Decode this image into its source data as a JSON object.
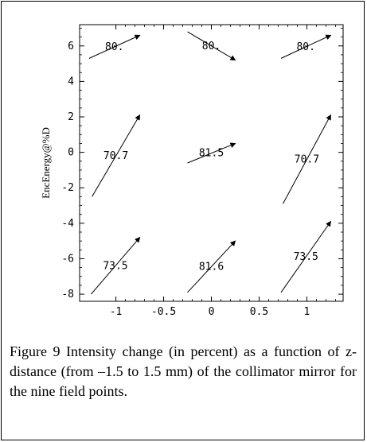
{
  "chart_data": {
    "type": "vector-field",
    "ylabel": "EncEnergy@%D",
    "xlabel": "",
    "xlim": [
      -1.38,
      1.38
    ],
    "ylim": [
      -8.4,
      7.2
    ],
    "xticks": [
      -1,
      -0.5,
      0,
      0.5,
      1
    ],
    "xtick_labels": [
      "-1",
      "-0.5",
      "0",
      "0.5",
      "1"
    ],
    "yticks": [
      -8,
      -6,
      -4,
      -2,
      0,
      2,
      4,
      6
    ],
    "ytick_labels": [
      "-8",
      "-6",
      "-4",
      "-2",
      "0",
      "2",
      "4",
      "6"
    ],
    "grid": false,
    "points": [
      {
        "label": "80.",
        "x1": -1.28,
        "y1": 5.3,
        "x2": -0.75,
        "y2": 6.6
      },
      {
        "label": "80.",
        "x1": -0.25,
        "y1": 6.8,
        "x2": 0.25,
        "y2": 5.2
      },
      {
        "label": "80.",
        "x1": 0.73,
        "y1": 5.3,
        "x2": 1.25,
        "y2": 6.6
      },
      {
        "label": "70.7",
        "x1": -1.25,
        "y1": -2.5,
        "x2": -0.75,
        "y2": 2.1
      },
      {
        "label": "81.5",
        "x1": -0.25,
        "y1": -0.6,
        "x2": 0.25,
        "y2": 0.5
      },
      {
        "label": "70.7",
        "x1": 0.75,
        "y1": -2.9,
        "x2": 1.25,
        "y2": 2.1
      },
      {
        "label": "73.5",
        "x1": -1.26,
        "y1": -8.0,
        "x2": -0.75,
        "y2": -4.8
      },
      {
        "label": "81.6",
        "x1": -0.25,
        "y1": -7.9,
        "x2": 0.25,
        "y2": -5.0
      },
      {
        "label": "73.5",
        "x1": 0.73,
        "y1": -7.9,
        "x2": 1.25,
        "y2": -3.9
      }
    ]
  },
  "caption": {
    "text": "Figure 9 Intensity change (in percent) as a function of z-distance  (from –1.5 to 1.5 mm) of the collimator mirror for the nine field points."
  }
}
